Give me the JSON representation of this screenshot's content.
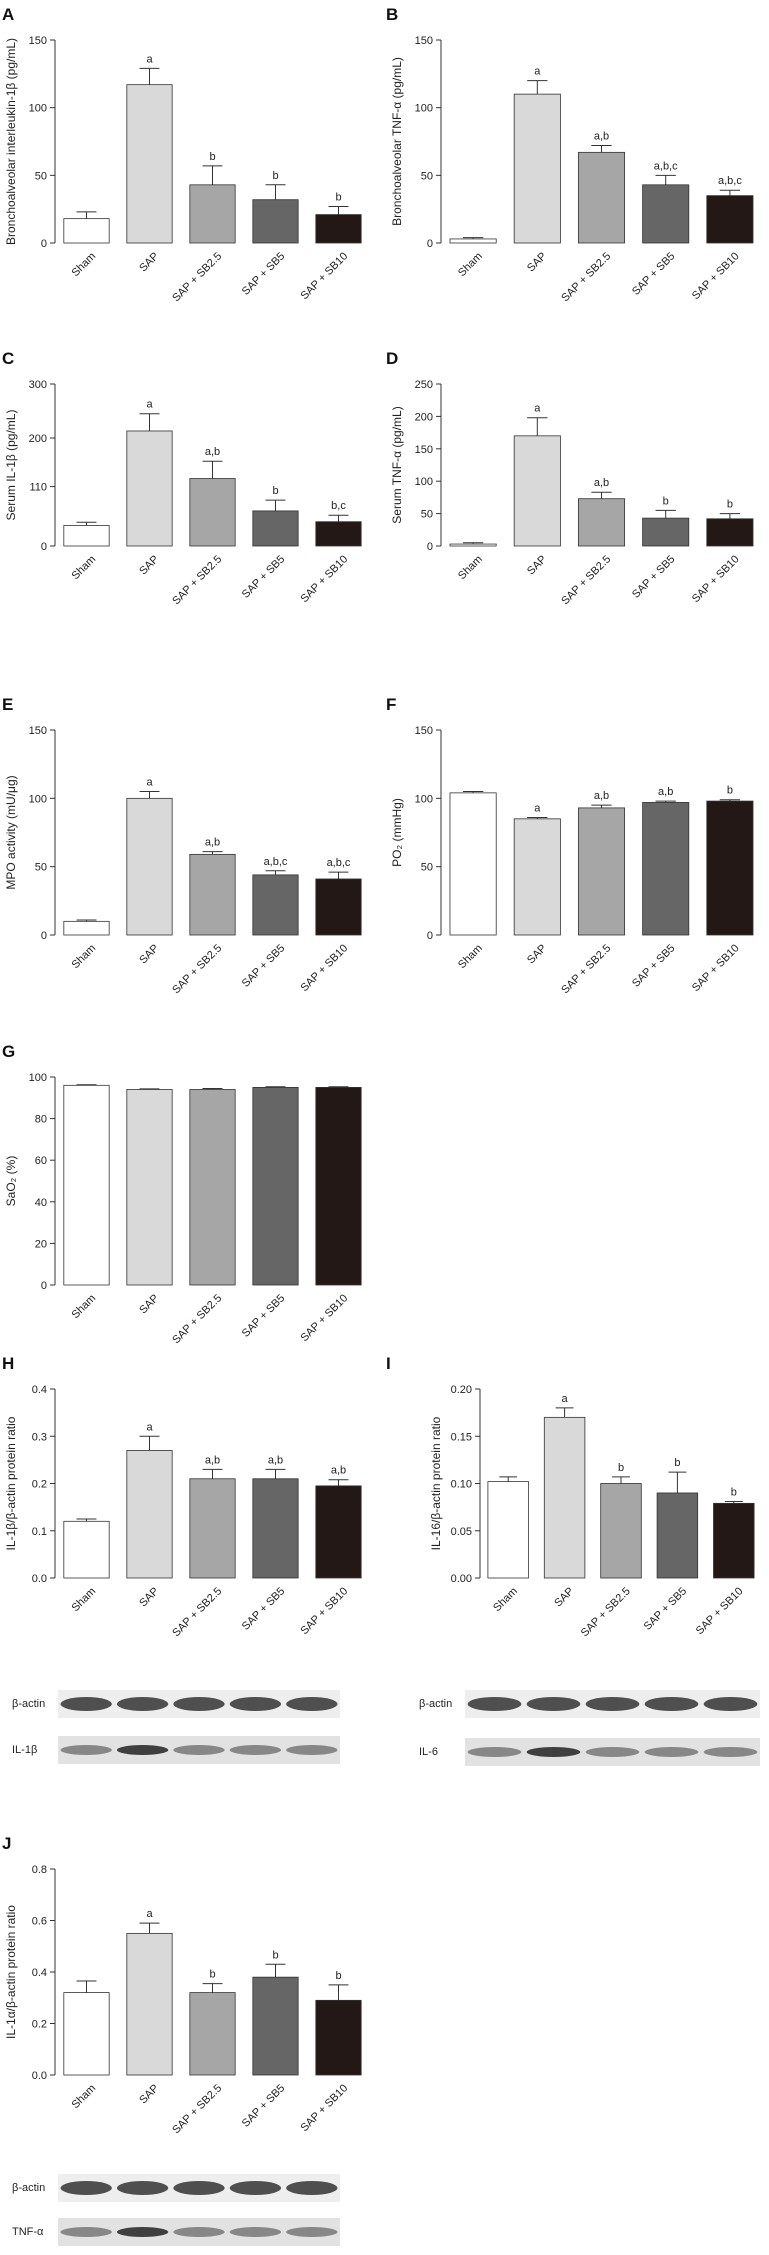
{
  "chart_data": [
    {
      "type": "bar",
      "panel": "A",
      "y_label": "Bronchoalveolar interleukin-1β (pg/mL)",
      "categories": [
        "Sham",
        "SAP",
        "SAP + SB2.5",
        "SAP + SB5",
        "SAP + SB10"
      ],
      "values": [
        18,
        117,
        43,
        32,
        21
      ],
      "errors": [
        5,
        12,
        14,
        11,
        6
      ],
      "annotations": [
        null,
        "a",
        "b",
        "b",
        "b"
      ],
      "colors": [
        "#ffffff",
        "#d9d9d9",
        "#a6a6a6",
        "#666666",
        "#231815"
      ],
      "ylim": [
        0,
        150
      ],
      "yticks": [
        0,
        50,
        100,
        150
      ]
    },
    {
      "type": "bar",
      "panel": "B",
      "y_label": "Bronchoalveolar TNF-α (pg/mL)",
      "categories": [
        "Sham",
        "SAP",
        "SAP + SB2.5",
        "SAP + SB5",
        "SAP + SB10"
      ],
      "values": [
        3,
        110,
        67,
        43,
        35
      ],
      "errors": [
        1,
        10,
        5,
        7,
        4
      ],
      "annotations": [
        null,
        "a",
        "a,b",
        "a,b,c",
        "a,b,c"
      ],
      "colors": [
        "#ffffff",
        "#d9d9d9",
        "#a6a6a6",
        "#666666",
        "#231815"
      ],
      "ylim": [
        0,
        150
      ],
      "yticks": [
        0,
        50,
        100,
        150
      ]
    },
    {
      "type": "bar",
      "panel": "C",
      "y_label": "Serum IL-1β (pg/mL)",
      "categories": [
        "Sham",
        "SAP",
        "SAP + SB2.5",
        "SAP + SB5",
        "SAP + SB10"
      ],
      "values": [
        38,
        213,
        125,
        65,
        45
      ],
      "errors": [
        6,
        32,
        32,
        20,
        12
      ],
      "annotations": [
        null,
        "a",
        "a,b",
        "b",
        "b,c"
      ],
      "colors": [
        "#ffffff",
        "#d9d9d9",
        "#a6a6a6",
        "#666666",
        "#231815"
      ],
      "ylim": [
        0,
        300
      ],
      "yticks": [
        0,
        110,
        200,
        300
      ]
    },
    {
      "type": "bar",
      "panel": "D",
      "y_label": "Serum TNF-α (pg/mL)",
      "categories": [
        "Sham",
        "SAP",
        "SAP + SB2.5",
        "SAP + SB5",
        "SAP + SB10"
      ],
      "values": [
        3,
        170,
        73,
        43,
        42
      ],
      "errors": [
        2,
        28,
        10,
        12,
        8
      ],
      "annotations": [
        null,
        "a",
        "a,b",
        "b",
        "b"
      ],
      "colors": [
        "#ffffff",
        "#d9d9d9",
        "#a6a6a6",
        "#666666",
        "#231815"
      ],
      "ylim": [
        0,
        250
      ],
      "yticks": [
        0,
        50,
        100,
        150,
        200,
        250
      ]
    },
    {
      "type": "bar",
      "panel": "E",
      "y_label": "MPO activity (mU/μg)",
      "categories": [
        "Sham",
        "SAP",
        "SAP + SB2.5",
        "SAP + SB5",
        "SAP + SB10"
      ],
      "values": [
        10,
        100,
        59,
        44,
        41
      ],
      "errors": [
        1,
        5,
        2,
        3,
        5
      ],
      "annotations": [
        null,
        "a",
        "a,b",
        "a,b,c",
        "a,b,c"
      ],
      "colors": [
        "#ffffff",
        "#d9d9d9",
        "#a6a6a6",
        "#666666",
        "#231815"
      ],
      "ylim": [
        0,
        150
      ],
      "yticks": [
        0,
        50,
        100,
        150
      ]
    },
    {
      "type": "bar",
      "panel": "F",
      "y_label": "PO₂ (mmHg)",
      "categories": [
        "Sham",
        "SAP",
        "SAP + SB2.5",
        "SAP + SB5",
        "SAP + SB10"
      ],
      "values": [
        104,
        85,
        93,
        97,
        98
      ],
      "errors": [
        1,
        1,
        2,
        1,
        1
      ],
      "annotations": [
        null,
        "a",
        "a,b",
        "a,b",
        "b"
      ],
      "colors": [
        "#ffffff",
        "#d9d9d9",
        "#a6a6a6",
        "#666666",
        "#231815"
      ],
      "ylim": [
        0,
        150
      ],
      "yticks": [
        0,
        50,
        100,
        150
      ]
    },
    {
      "type": "bar",
      "panel": "G",
      "y_label": "SaO₂ (%)",
      "categories": [
        "Sham",
        "SAP",
        "SAP + SB2.5",
        "SAP + SB5",
        "SAP + SB10"
      ],
      "values": [
        96,
        94,
        94,
        95,
        95
      ],
      "errors": [
        0.3,
        0.3,
        0.5,
        0.3,
        0.3
      ],
      "annotations": [
        null,
        null,
        null,
        null,
        null
      ],
      "colors": [
        "#ffffff",
        "#d9d9d9",
        "#a6a6a6",
        "#666666",
        "#231815"
      ],
      "ylim": [
        0,
        100
      ],
      "yticks": [
        0,
        20,
        40,
        60,
        80,
        100
      ]
    },
    {
      "type": "bar",
      "panel": "H",
      "y_label": "IL-1β/β-actin protein ratio",
      "categories": [
        "Sham",
        "SAP",
        "SAP + SB2.5",
        "SAP + SB5",
        "SAP + SB10"
      ],
      "values": [
        0.12,
        0.27,
        0.21,
        0.21,
        0.195
      ],
      "errors": [
        0.005,
        0.03,
        0.02,
        0.02,
        0.013
      ],
      "annotations": [
        null,
        "a",
        "a,b",
        "a,b",
        "a,b"
      ],
      "colors": [
        "#ffffff",
        "#d9d9d9",
        "#a6a6a6",
        "#666666",
        "#231815"
      ],
      "ylim": [
        0,
        0.4
      ],
      "yticks": [
        {
          "value": 0,
          "label": "0.0"
        },
        0.1,
        0.2,
        0.3,
        0.4
      ],
      "blots": [
        "β-actin",
        "IL-1β"
      ]
    },
    {
      "type": "bar",
      "panel": "I",
      "y_label": "IL-16/β-actin protein ratio",
      "categories": [
        "Sham",
        "SAP",
        "SAP + SB2.5",
        "SAP + SB5",
        "SAP + SB10"
      ],
      "values": [
        0.102,
        0.17,
        0.1,
        0.09,
        0.079
      ],
      "errors": [
        0.005,
        0.01,
        0.007,
        0.022,
        0.002
      ],
      "annotations": [
        null,
        "a",
        "b",
        "b",
        "b"
      ],
      "colors": [
        "#ffffff",
        "#d9d9d9",
        "#a6a6a6",
        "#666666",
        "#231815"
      ],
      "ylim": [
        0,
        0.2
      ],
      "yticks": [
        {
          "value": 0,
          "label": "0.00"
        },
        {
          "value": 0.05,
          "label": "0.05"
        },
        {
          "value": 0.1,
          "label": "0.10"
        },
        {
          "value": 0.15,
          "label": "0.15"
        },
        {
          "value": 0.2,
          "label": "0.20"
        }
      ],
      "blots": [
        "β-actin",
        "IL-6"
      ]
    },
    {
      "type": "bar",
      "panel": "J",
      "y_label": "IL-1α/β-actin protein ratio",
      "categories": [
        "Sham",
        "SAP",
        "SAP + SB2.5",
        "SAP + SB5",
        "SAP + SB10"
      ],
      "values": [
        0.32,
        0.55,
        0.32,
        0.38,
        0.29
      ],
      "errors": [
        0.045,
        0.04,
        0.035,
        0.05,
        0.06
      ],
      "annotations": [
        null,
        "a",
        "b",
        "b",
        "b"
      ],
      "colors": [
        "#ffffff",
        "#d9d9d9",
        "#a6a6a6",
        "#666666",
        "#231815"
      ],
      "ylim": [
        0,
        0.8
      ],
      "yticks": [
        {
          "value": 0,
          "label": "0.0"
        },
        0.2,
        0.4,
        0.6,
        0.8
      ],
      "blots": [
        "β-actin",
        "TNF-α"
      ]
    }
  ]
}
